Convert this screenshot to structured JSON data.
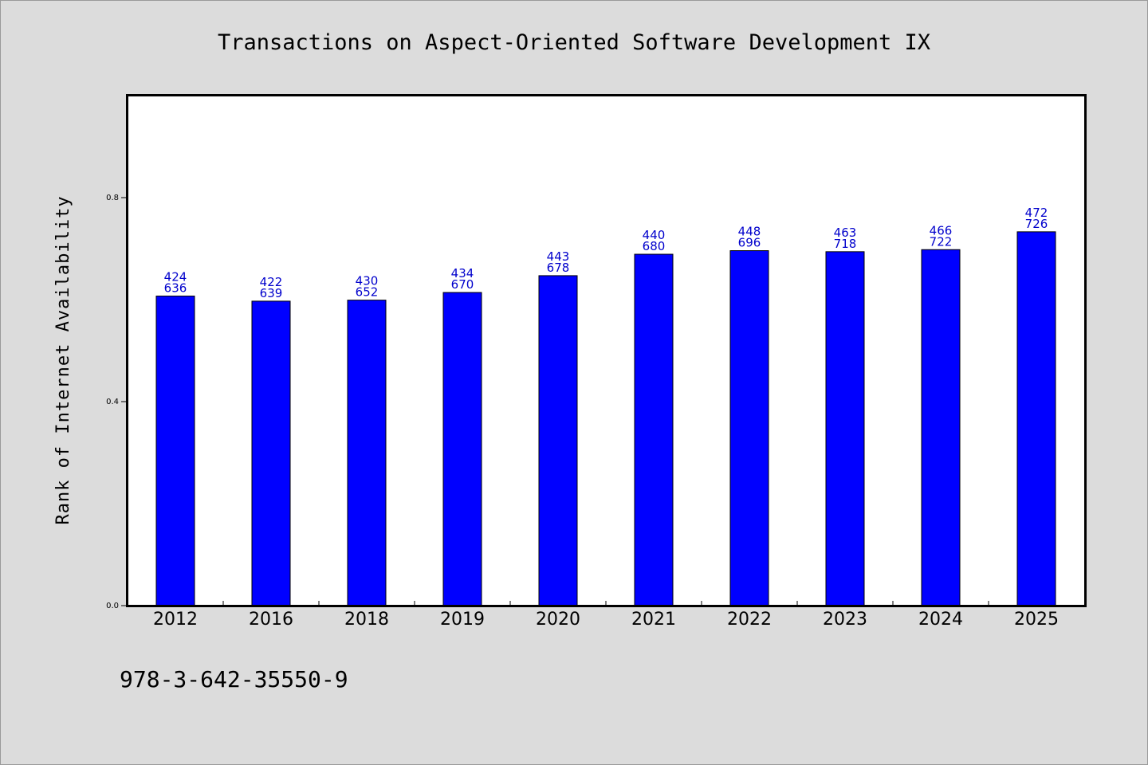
{
  "chart_data": {
    "type": "bar",
    "title": "Transactions on Aspect-Oriented Software Development IX",
    "xlabel": "",
    "ylabel": "Rank of Internet Availability",
    "categories": [
      "2012",
      "2016",
      "2018",
      "2019",
      "2020",
      "2021",
      "2022",
      "2023",
      "2024",
      "2025"
    ],
    "values": [
      0.607,
      0.597,
      0.599,
      0.614,
      0.647,
      0.689,
      0.696,
      0.694,
      0.698,
      0.733
    ],
    "data_labels_top": [
      "424",
      "422",
      "430",
      "434",
      "443",
      "440",
      "448",
      "463",
      "466",
      "472"
    ],
    "data_labels_bottom": [
      "636",
      "639",
      "652",
      "670",
      "678",
      "680",
      "696",
      "718",
      "722",
      "726"
    ],
    "ylim": [
      0,
      1.0
    ],
    "yticks": [
      0.0,
      0.4,
      0.8
    ],
    "ytick_labels": [
      "0.0",
      "0.4",
      "0.8"
    ],
    "grid": false,
    "bar_color": "#0000ff",
    "label_color": "#0000cc",
    "background_color": "#dcdcdc",
    "plot_background_color": "#ffffff"
  },
  "footnote": "978-3-642-35550-9"
}
